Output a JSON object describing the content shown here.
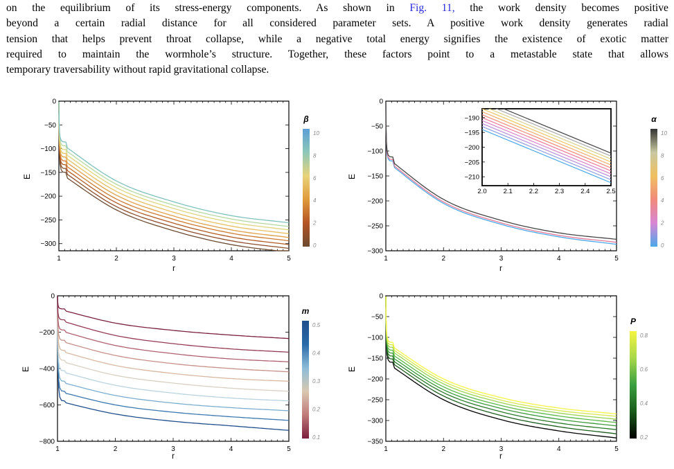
{
  "paragraph": {
    "line1_pre": "on the equilibrium of its stress-energy components.  As shown in ",
    "fig_ref": "Fig. 11,",
    "line1_post": " the work density becomes positive",
    "line2": "beyond a certain radial distance for all considered parameter sets.  A positive work density generates radial",
    "line3": "tension that helps prevent throat collapse, while a negative total energy signifies the existence of exotic matter",
    "line4": "required to maintain the wormhole’s structure.  Together, these factors point to a metastable state that allows",
    "line5": "temporary traversability without rapid gravitational collapse."
  },
  "chart_data": [
    {
      "type": "line",
      "xlabel": "r",
      "ylabel": "E",
      "xlim": [
        1,
        5
      ],
      "ylim": [
        -315,
        0
      ],
      "xticks": [
        1,
        2,
        3,
        4,
        5
      ],
      "yticks": [
        0,
        -50,
        -100,
        -150,
        -200,
        -250,
        -300
      ],
      "x": [
        1,
        2,
        3,
        4,
        5
      ],
      "legend": {
        "title": "β",
        "ticks": [
          "0",
          "2",
          "4",
          "6",
          "8",
          "10"
        ],
        "colors": [
          "#6b4a2f",
          "#b35424",
          "#e09a3a",
          "#e8d27a",
          "#8cc8b8",
          "#5b9ed6"
        ]
      },
      "series": [
        {
          "color": "#6b4a2f",
          "values": [
            -150,
            -229,
            -273,
            -302,
            -318
          ]
        },
        {
          "color": "#8c4d2a",
          "values": [
            -142,
            -222,
            -265,
            -294,
            -310
          ]
        },
        {
          "color": "#b05a22",
          "values": [
            -134,
            -214,
            -257,
            -286,
            -302
          ]
        },
        {
          "color": "#cd7a30",
          "values": [
            -126,
            -206,
            -249,
            -278,
            -294
          ]
        },
        {
          "color": "#dfa047",
          "values": [
            -118,
            -198,
            -242,
            -271,
            -287
          ]
        },
        {
          "color": "#e6c060",
          "values": [
            -110,
            -190,
            -234,
            -263,
            -279
          ]
        },
        {
          "color": "#dfd67e",
          "values": [
            -102,
            -182,
            -226,
            -255,
            -271
          ]
        },
        {
          "color": "#b5d8a0",
          "values": [
            -94,
            -175,
            -219,
            -248,
            -264
          ]
        },
        {
          "color": "#7fc2bd",
          "values": [
            -86,
            -168,
            -212,
            -241,
            -256
          ]
        }
      ]
    },
    {
      "type": "line",
      "xlabel": "r",
      "ylabel": "E",
      "xlim": [
        1,
        5
      ],
      "ylim": [
        -300,
        0
      ],
      "xticks": [
        1,
        2,
        3,
        4,
        5
      ],
      "yticks": [
        0,
        -50,
        -100,
        -150,
        -200,
        -250,
        -300
      ],
      "x": [
        1,
        2,
        3,
        4,
        5
      ],
      "legend": {
        "title": "α",
        "ticks": [
          "0",
          "2",
          "4",
          "6",
          "8",
          "10"
        ],
        "colors": [
          "#4aa8e8",
          "#d885d4",
          "#f08a7a",
          "#f0c060",
          "#c8c8a0",
          "#333333"
        ]
      },
      "series": [
        {
          "color": "#4aa8e8",
          "values": [
            -120,
            -205,
            -247,
            -272,
            -287
          ]
        },
        {
          "color": "#e07a9a",
          "values": [
            -117,
            -202,
            -244,
            -269,
            -283
          ]
        },
        {
          "color": "#444444",
          "values": [
            -112,
            -197,
            -239,
            -264,
            -277
          ]
        }
      ],
      "inset": {
        "xlim": [
          2,
          2.5
        ],
        "ylim": [
          -213,
          -187
        ],
        "xticks": [
          "2.0",
          "2.1",
          "2.2",
          "2.3",
          "2.4",
          "2.5"
        ],
        "yticks": [
          -190,
          -195,
          -200,
          -205,
          -210
        ],
        "series": [
          {
            "color": "#4aa8e8",
            "values": [
              -194,
              -212
            ]
          },
          {
            "color": "#8f9ee0",
            "values": [
              -193,
              -211
            ]
          },
          {
            "color": "#b88cd8",
            "values": [
              -192,
              -210
            ]
          },
          {
            "color": "#d882c8",
            "values": [
              -191,
              -209
            ]
          },
          {
            "color": "#ef7c9a",
            "values": [
              -190,
              -208
            ]
          },
          {
            "color": "#f28a78",
            "values": [
              -189,
              -207
            ]
          },
          {
            "color": "#f4a865",
            "values": [
              -188,
              -206
            ]
          },
          {
            "color": "#efc45c",
            "values": [
              -187,
              -205
            ]
          },
          {
            "color": "#d9d08a",
            "values": [
              -186,
              -204
            ]
          },
          {
            "color": "#a8a8a8",
            "values": [
              -185,
              -203
            ]
          },
          {
            "color": "#444444",
            "values": [
              -184,
              -202
            ]
          }
        ]
      }
    },
    {
      "type": "line",
      "xlabel": "r",
      "ylabel": "E",
      "xlim": [
        1,
        5
      ],
      "ylim": [
        -800,
        0
      ],
      "xticks": [
        1,
        2,
        3,
        4,
        5
      ],
      "yticks": [
        0,
        -200,
        -400,
        -600,
        -800
      ],
      "x": [
        1,
        2,
        3,
        4,
        5
      ],
      "legend": {
        "title": "m",
        "ticks": [
          "0.1",
          "0.2",
          "0.3",
          "0.4",
          "0.5"
        ],
        "colors": [
          "#7a1f3d",
          "#c07a7a",
          "#d9c8b0",
          "#8cbcd8",
          "#2a6aa8",
          "#1f4e8c"
        ]
      },
      "series": [
        {
          "color": "#1f4e8c",
          "values": [
            -578,
            -650,
            -690,
            -715,
            -740
          ]
        },
        {
          "color": "#3a78b0",
          "values": [
            -525,
            -600,
            -640,
            -665,
            -685
          ]
        },
        {
          "color": "#7aaed0",
          "values": [
            -470,
            -548,
            -590,
            -615,
            -632
          ]
        },
        {
          "color": "#b8d4e0",
          "values": [
            -412,
            -492,
            -535,
            -562,
            -578
          ]
        },
        {
          "color": "#d9d0c0",
          "values": [
            -355,
            -437,
            -480,
            -508,
            -525
          ]
        },
        {
          "color": "#d8b8a0",
          "values": [
            -300,
            -383,
            -427,
            -455,
            -470
          ]
        },
        {
          "color": "#c79088",
          "values": [
            -245,
            -328,
            -373,
            -400,
            -418
          ]
        },
        {
          "color": "#b06070",
          "values": [
            -188,
            -273,
            -318,
            -347,
            -363
          ]
        },
        {
          "color": "#943a52",
          "values": [
            -132,
            -218,
            -263,
            -292,
            -310
          ]
        },
        {
          "color": "#7a1f3d",
          "values": [
            -72,
            -150,
            -190,
            -216,
            -235
          ]
        }
      ]
    },
    {
      "type": "line",
      "xlabel": "r",
      "ylabel": "E",
      "xlim": [
        1,
        5
      ],
      "ylim": [
        -350,
        0
      ],
      "xticks": [
        1,
        2,
        3,
        4,
        5
      ],
      "yticks": [
        0,
        -50,
        -100,
        -150,
        -200,
        -250,
        -300,
        -350
      ],
      "x": [
        1,
        2,
        3,
        4,
        5
      ],
      "legend": {
        "title": "P",
        "ticks": [
          "0.2",
          "0.4",
          "0.6",
          "0.8"
        ],
        "colors": [
          "#000000",
          "#1a5a1a",
          "#3aa040",
          "#a8d84a",
          "#f4f442"
        ]
      },
      "series": [
        {
          "color": "#000000",
          "values": [
            -160,
            -250,
            -298,
            -325,
            -342
          ]
        },
        {
          "color": "#1c5e1c",
          "values": [
            -152,
            -241,
            -288,
            -315,
            -332
          ]
        },
        {
          "color": "#2a7a2a",
          "values": [
            -145,
            -233,
            -279,
            -306,
            -322
          ]
        },
        {
          "color": "#3a9a38",
          "values": [
            -138,
            -226,
            -271,
            -297,
            -313
          ]
        },
        {
          "color": "#5ab846",
          "values": [
            -131,
            -219,
            -264,
            -289,
            -305
          ]
        },
        {
          "color": "#9ad250",
          "values": [
            -124,
            -212,
            -257,
            -282,
            -297
          ]
        },
        {
          "color": "#d6e84e",
          "values": [
            -118,
            -206,
            -251,
            -276,
            -290
          ]
        },
        {
          "color": "#f4f442",
          "values": [
            -112,
            -200,
            -245,
            -270,
            -284
          ]
        }
      ]
    }
  ]
}
